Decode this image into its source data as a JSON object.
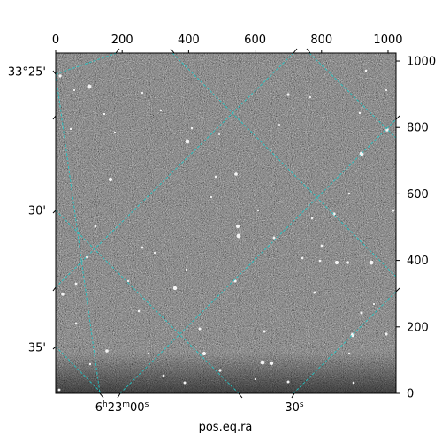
{
  "chart_data": {
    "type": "image",
    "title": "",
    "xlabel": "pos.eq.ra",
    "ylabel": "",
    "pixel_axes": {
      "x": {
        "range": [
          0,
          1024
        ],
        "ticks": [
          0,
          200,
          400,
          600,
          800,
          1000
        ],
        "tick_labels": [
          "0",
          "200",
          "400",
          "600",
          "800",
          "1000"
        ],
        "position": "top"
      },
      "y": {
        "range": [
          0,
          1024
        ],
        "ticks": [
          0,
          200,
          400,
          600,
          800,
          1000
        ],
        "tick_labels": [
          "0",
          "200",
          "400",
          "600",
          "800",
          "1000"
        ],
        "position": "right"
      }
    },
    "ra_axis": {
      "labels": [
        "6h23m00s",
        "30s"
      ],
      "position": "bottom"
    },
    "dec_axis": {
      "labels": [
        "33°25'",
        "30'",
        "35'"
      ],
      "position": "left"
    },
    "grid": true,
    "grid_color": "#22c5c5",
    "image": "grayscale star field with noise background"
  }
}
